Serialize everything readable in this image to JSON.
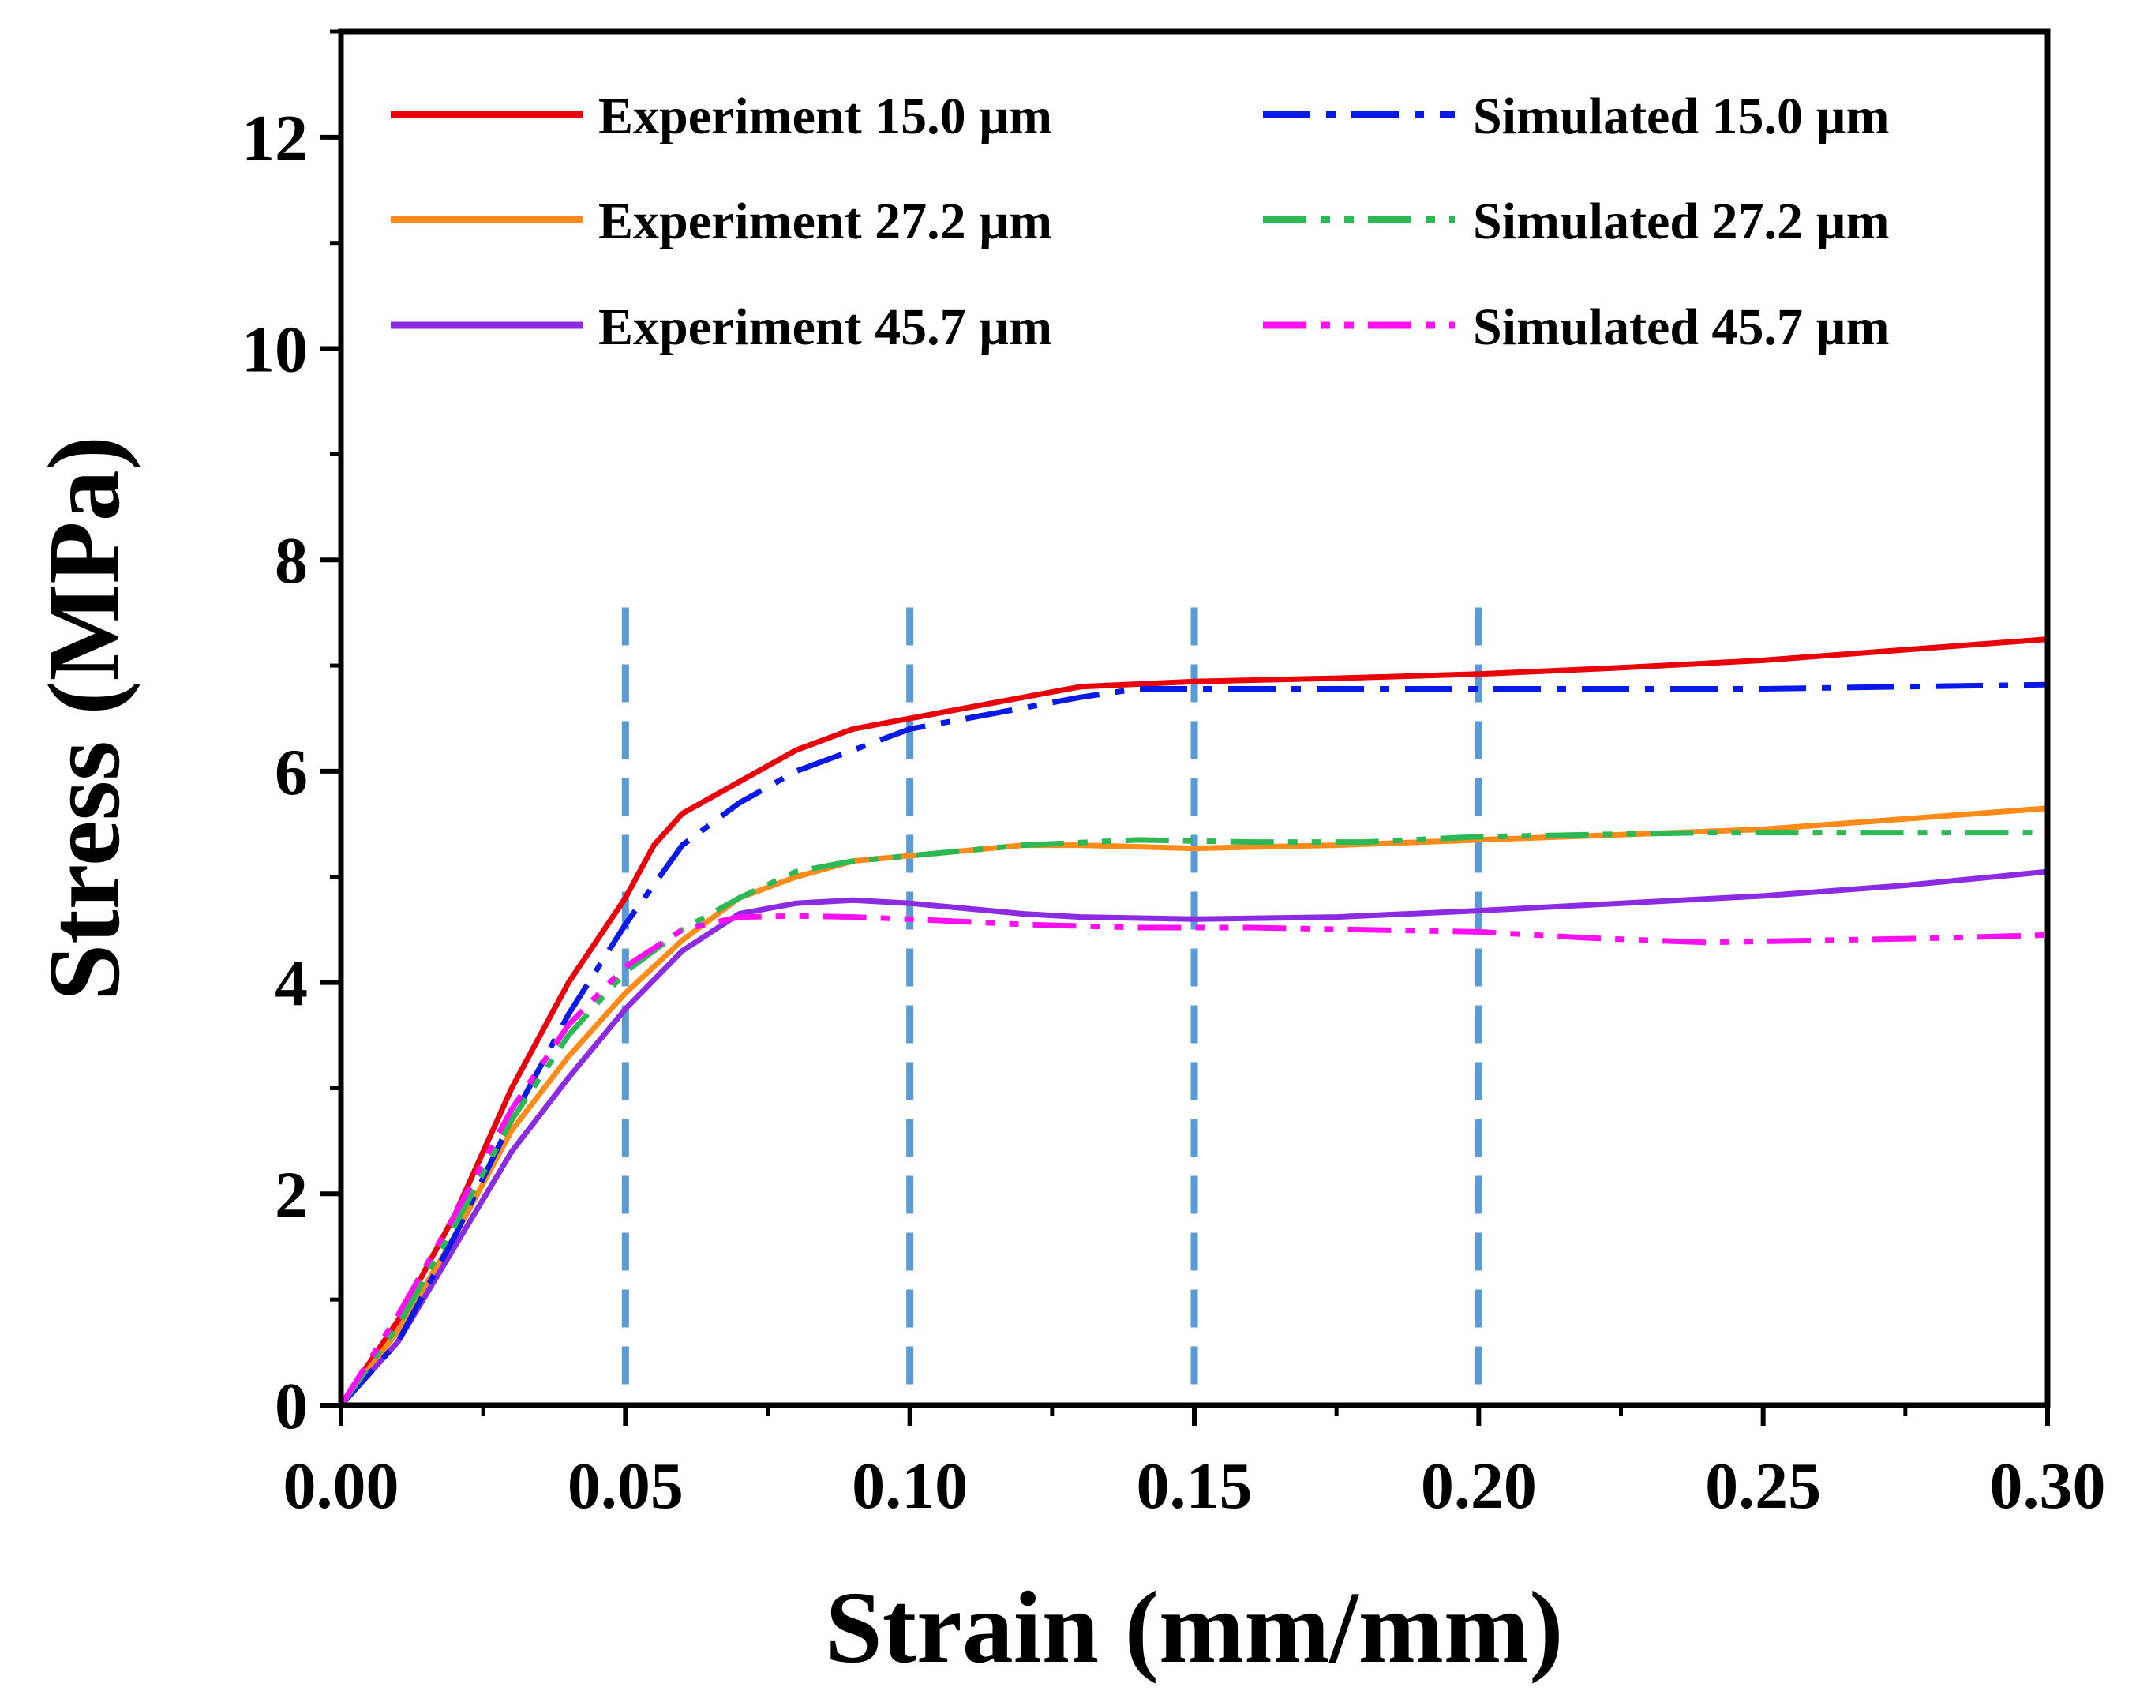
{
  "chart_data": {
    "type": "line",
    "title": "",
    "xlabel": "Strain (mm/mm)",
    "ylabel": "Stress (MPa)",
    "xlim": [
      0,
      0.3
    ],
    "ylim": [
      0,
      13
    ],
    "x_ticks": [
      {
        "value": 0.0,
        "label": "0.00"
      },
      {
        "value": 0.05,
        "label": "0.05"
      },
      {
        "value": 0.1,
        "label": "0.10"
      },
      {
        "value": 0.15,
        "label": "0.15"
      },
      {
        "value": 0.2,
        "label": "0.20"
      },
      {
        "value": 0.25,
        "label": "0.25"
      },
      {
        "value": 0.3,
        "label": "0.30"
      }
    ],
    "y_ticks": [
      {
        "value": 0,
        "label": "0"
      },
      {
        "value": 2,
        "label": "2"
      },
      {
        "value": 4,
        "label": "4"
      },
      {
        "value": 6,
        "label": "6"
      },
      {
        "value": 8,
        "label": "8"
      },
      {
        "value": 10,
        "label": "10"
      },
      {
        "value": 12,
        "label": "12"
      }
    ],
    "reference_lines_x": [
      0.05,
      0.1,
      0.15,
      0.2
    ],
    "reference_line_color": "#5B9BD5",
    "legend_position": "top",
    "series": [
      {
        "name": "Experiment 15.0 µm",
        "color": "#E8000B",
        "style": "solid",
        "x": [
          0,
          0.01,
          0.02,
          0.03,
          0.04,
          0.05,
          0.055,
          0.06,
          0.07,
          0.08,
          0.09,
          0.1,
          0.11,
          0.12,
          0.13,
          0.15,
          0.175,
          0.2,
          0.225,
          0.25,
          0.275,
          0.3
        ],
        "y": [
          0,
          0.8,
          1.8,
          3.0,
          4.0,
          4.8,
          5.3,
          5.6,
          5.9,
          6.2,
          6.4,
          6.5,
          6.6,
          6.7,
          6.8,
          6.85,
          6.88,
          6.92,
          6.98,
          7.05,
          7.15,
          7.25
        ]
      },
      {
        "name": "Experiment 27.2 µm",
        "color": "#FF8C1A",
        "style": "solid",
        "x": [
          0,
          0.01,
          0.02,
          0.03,
          0.04,
          0.05,
          0.06,
          0.07,
          0.08,
          0.09,
          0.1,
          0.11,
          0.12,
          0.13,
          0.15,
          0.175,
          0.2,
          0.225,
          0.25,
          0.275,
          0.3
        ],
        "y": [
          0,
          0.7,
          1.6,
          2.6,
          3.3,
          3.9,
          4.4,
          4.8,
          5.0,
          5.15,
          5.2,
          5.25,
          5.3,
          5.3,
          5.27,
          5.3,
          5.35,
          5.4,
          5.45,
          5.55,
          5.65
        ]
      },
      {
        "name": "Experiment 45.7 µm",
        "color": "#8B2BE2",
        "style": "solid",
        "x": [
          0,
          0.01,
          0.02,
          0.03,
          0.04,
          0.05,
          0.06,
          0.07,
          0.08,
          0.09,
          0.1,
          0.11,
          0.12,
          0.13,
          0.15,
          0.175,
          0.2,
          0.225,
          0.25,
          0.275,
          0.3
        ],
        "y": [
          0,
          0.6,
          1.5,
          2.4,
          3.1,
          3.75,
          4.3,
          4.65,
          4.75,
          4.78,
          4.75,
          4.7,
          4.65,
          4.62,
          4.6,
          4.62,
          4.68,
          4.75,
          4.82,
          4.92,
          5.05
        ]
      },
      {
        "name": "Simulated 15.0 µm",
        "color": "#0A1AE6",
        "style": "dashdot",
        "x": [
          0,
          0.01,
          0.02,
          0.03,
          0.04,
          0.05,
          0.06,
          0.07,
          0.08,
          0.09,
          0.1,
          0.11,
          0.12,
          0.13,
          0.14,
          0.15,
          0.175,
          0.2,
          0.225,
          0.25,
          0.275,
          0.3
        ],
        "y": [
          0,
          0.6,
          1.6,
          2.7,
          3.7,
          4.55,
          5.3,
          5.7,
          6.0,
          6.2,
          6.4,
          6.5,
          6.6,
          6.7,
          6.78,
          6.78,
          6.78,
          6.78,
          6.78,
          6.78,
          6.8,
          6.82
        ]
      },
      {
        "name": "Simulated 27.2 µm",
        "color": "#2DB856",
        "style": "dashdotdot",
        "x": [
          0,
          0.01,
          0.02,
          0.03,
          0.04,
          0.05,
          0.06,
          0.07,
          0.08,
          0.09,
          0.1,
          0.12,
          0.14,
          0.16,
          0.18,
          0.2,
          0.22,
          0.24,
          0.26,
          0.28,
          0.3
        ],
        "y": [
          0,
          0.75,
          1.7,
          2.7,
          3.5,
          4.1,
          4.5,
          4.8,
          5.05,
          5.15,
          5.2,
          5.3,
          5.35,
          5.33,
          5.33,
          5.38,
          5.4,
          5.42,
          5.42,
          5.42,
          5.42
        ]
      },
      {
        "name": "Simulated 45.7 µm",
        "color": "#FF10F0",
        "style": "dashdotdot",
        "x": [
          0,
          0.01,
          0.02,
          0.03,
          0.04,
          0.05,
          0.06,
          0.07,
          0.08,
          0.09,
          0.1,
          0.12,
          0.14,
          0.16,
          0.18,
          0.2,
          0.22,
          0.24,
          0.26,
          0.28,
          0.3
        ],
        "y": [
          0,
          0.85,
          1.8,
          2.8,
          3.6,
          4.15,
          4.5,
          4.62,
          4.63,
          4.62,
          4.6,
          4.55,
          4.52,
          4.52,
          4.5,
          4.48,
          4.42,
          4.38,
          4.4,
          4.42,
          4.45
        ]
      }
    ]
  }
}
